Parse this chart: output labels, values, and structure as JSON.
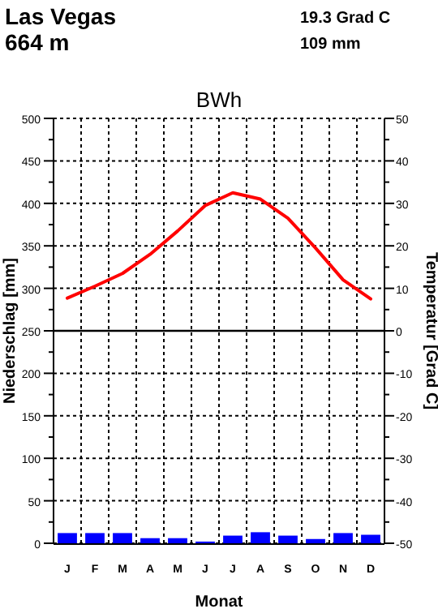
{
  "chart_data": {
    "type": "bar",
    "title": "Las Vegas",
    "subtitle": "664 m",
    "annotations": [
      "19.3 Grad C",
      "109 mm",
      "BWh"
    ],
    "xlabel": "Monat",
    "ylabel": "Niederschlag [mm]",
    "y2label": "Temperatur [Grad C]",
    "categories": [
      "J",
      "F",
      "M",
      "A",
      "M",
      "J",
      "J",
      "A",
      "S",
      "O",
      "N",
      "D"
    ],
    "series": [
      {
        "color": "#0000ff",
        "values": [
          12,
          12,
          12,
          6,
          6,
          2,
          9,
          13,
          9,
          5,
          12,
          10
        ]
      },
      {
        "type": "line",
        "axis": "y2",
        "color": "#ff0000",
        "values": [
          7.7,
          10.5,
          13.5,
          18,
          23.5,
          29.5,
          32.5,
          31,
          26.5,
          19.5,
          12,
          7.5
        ]
      }
    ],
    "ylim": [
      0,
      500
    ],
    "yticks": [
      0,
      {
        "value": 25,
        "label": null
      },
      50,
      {
        "value": 75,
        "label": null
      },
      100,
      {
        "value": 125,
        "label": null
      },
      150,
      {
        "value": 175,
        "label": null
      },
      200,
      {
        "value": 225,
        "label": null
      },
      250,
      {
        "value": 275,
        "label": null
      },
      300,
      {
        "value": 325,
        "label": null
      },
      350,
      {
        "value": 375,
        "label": null
      },
      400,
      {
        "value": 425,
        "label": null
      },
      450,
      {
        "value": 475,
        "label": null
      },
      500
    ],
    "y2lim": [
      -50,
      50
    ],
    "y2ticks": [
      -50,
      {
        "value": -45,
        "label": null
      },
      -40,
      {
        "value": -35,
        "label": null
      },
      -30,
      {
        "value": -25,
        "label": null
      },
      -20,
      {
        "value": -15,
        "label": null
      },
      -10,
      {
        "value": -5,
        "label": null
      },
      0,
      {
        "value": 5,
        "label": null
      },
      10,
      {
        "value": 15,
        "label": null
      },
      20,
      {
        "value": 25,
        "label": null
      },
      30,
      {
        "value": 35,
        "label": null
      },
      40,
      {
        "value": 45,
        "label": null
      },
      50
    ],
    "ref_lines": [
      {
        "axis": "y2",
        "value": 0
      }
    ],
    "grid": true,
    "line_style": "solid",
    "marker": "none"
  }
}
